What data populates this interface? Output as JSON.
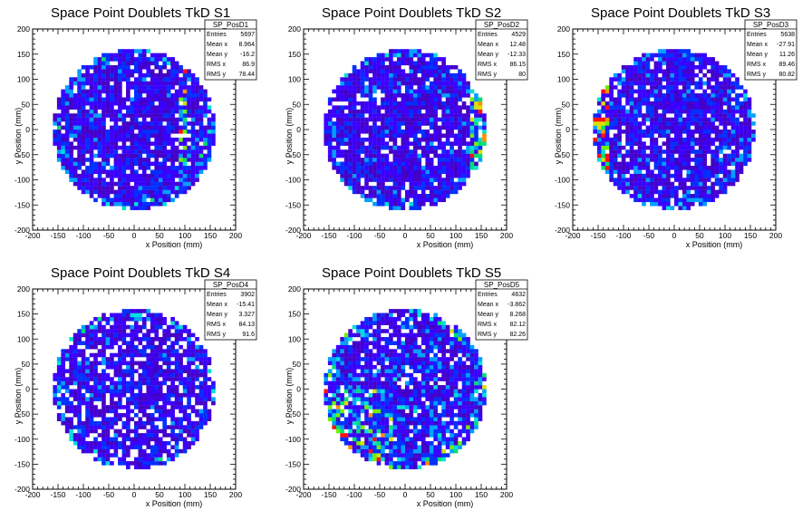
{
  "colors": {
    "background": "#ffffff",
    "frame": "#000000",
    "palette": [
      "#4400c8",
      "#3a00ff",
      "#0030ff",
      "#00a0ff",
      "#00e0d8",
      "#00e070",
      "#70f000",
      "#d8e000",
      "#ff9000",
      "#ff1010"
    ]
  },
  "chart_data": [
    {
      "type": "heatmap",
      "title": "Space Point Doublets TkD S1",
      "xlabel": "x Position (mm)",
      "ylabel": "y Position (mm)",
      "xlim": [
        -200,
        200
      ],
      "ylim": [
        -200,
        200
      ],
      "xticks": [
        "-200",
        "-150",
        "-100",
        "-50",
        "0",
        "50",
        "100",
        "150",
        "200"
      ],
      "yticks": [
        "-200",
        "-150",
        "-100",
        "-50",
        "0",
        "50",
        "100",
        "150",
        "200"
      ],
      "bins": 50,
      "radius_mm": 160,
      "feature": "vertical_band",
      "stats": {
        "name": "SP_PosD1",
        "rows": [
          {
            "label": "Entries",
            "value": "5697"
          },
          {
            "label": "Mean x",
            "value": "8.964"
          },
          {
            "label": "Mean y",
            "value": "-16.2"
          },
          {
            "label": "RMS x",
            "value": "86.9"
          },
          {
            "label": "RMS y",
            "value": "78.44"
          }
        ]
      }
    },
    {
      "type": "heatmap",
      "title": "Space Point Doublets TkD S2",
      "xlabel": "x Position (mm)",
      "ylabel": "y Position (mm)",
      "xlim": [
        -200,
        200
      ],
      "ylim": [
        -200,
        200
      ],
      "xticks": [
        "-200",
        "-150",
        "-100",
        "-50",
        "0",
        "50",
        "100",
        "150",
        "200"
      ],
      "yticks": [
        "-200",
        "-150",
        "-100",
        "-50",
        "0",
        "50",
        "100",
        "150",
        "200"
      ],
      "bins": 50,
      "radius_mm": 160,
      "feature": "right_edge",
      "stats": {
        "name": "SP_PosD2",
        "rows": [
          {
            "label": "Entries",
            "value": "4529"
          },
          {
            "label": "Mean x",
            "value": "12.48"
          },
          {
            "label": "Mean y",
            "value": "-12.33"
          },
          {
            "label": "RMS x",
            "value": "86.15"
          },
          {
            "label": "RMS y",
            "value": "80"
          }
        ]
      }
    },
    {
      "type": "heatmap",
      "title": "Space Point Doublets TkD S3",
      "xlabel": "x Position (mm)",
      "ylabel": "y Position (mm)",
      "xlim": [
        -200,
        200
      ],
      "ylim": [
        -200,
        200
      ],
      "xticks": [
        "-200",
        "-150",
        "-100",
        "-50",
        "0",
        "50",
        "100",
        "150",
        "200"
      ],
      "yticks": [
        "-200",
        "-150",
        "-100",
        "-50",
        "0",
        "50",
        "100",
        "150",
        "200"
      ],
      "bins": 50,
      "radius_mm": 160,
      "feature": "left_edge",
      "stats": {
        "name": "SP_PosD3",
        "rows": [
          {
            "label": "Entries",
            "value": "5638"
          },
          {
            "label": "Mean x",
            "value": "-27.91"
          },
          {
            "label": "Mean y",
            "value": "11.26"
          },
          {
            "label": "RMS x",
            "value": "89.46"
          },
          {
            "label": "RMS y",
            "value": "80.82"
          }
        ]
      }
    },
    {
      "type": "heatmap",
      "title": "Space Point Doublets TkD S4",
      "xlabel": "x Position (mm)",
      "ylabel": "y Position (mm)",
      "xlim": [
        -200,
        200
      ],
      "ylim": [
        -200,
        200
      ],
      "xticks": [
        "-200",
        "-150",
        "-100",
        "-50",
        "0",
        "50",
        "100",
        "150",
        "200"
      ],
      "yticks": [
        "-200",
        "-150",
        "-100",
        "-50",
        "0",
        "50",
        "100",
        "150",
        "200"
      ],
      "bins": 50,
      "radius_mm": 160,
      "feature": "sparse",
      "stats": {
        "name": "SP_PosD4",
        "rows": [
          {
            "label": "Entries",
            "value": "3902"
          },
          {
            "label": "Mean x",
            "value": "-15.41"
          },
          {
            "label": "Mean y",
            "value": "3.327"
          },
          {
            "label": "RMS x",
            "value": "84.13"
          },
          {
            "label": "RMS y",
            "value": "91.6"
          }
        ]
      }
    },
    {
      "type": "heatmap",
      "title": "Space Point Doublets TkD S5",
      "xlabel": "x Position (mm)",
      "ylabel": "y Position (mm)",
      "xlim": [
        -200,
        200
      ],
      "ylim": [
        -200,
        200
      ],
      "xticks": [
        "-200",
        "-150",
        "-100",
        "-50",
        "0",
        "50",
        "100",
        "150",
        "200"
      ],
      "yticks": [
        "-200",
        "-150",
        "-100",
        "-50",
        "0",
        "50",
        "100",
        "150",
        "200"
      ],
      "bins": 50,
      "radius_mm": 160,
      "feature": "hot_lower_left",
      "stats": {
        "name": "SP_PosD5",
        "rows": [
          {
            "label": "Entries",
            "value": "4632"
          },
          {
            "label": "Mean x",
            "value": "-3.862"
          },
          {
            "label": "Mean y",
            "value": "8.268"
          },
          {
            "label": "RMS x",
            "value": "82.12"
          },
          {
            "label": "RMS y",
            "value": "82.26"
          }
        ]
      }
    }
  ]
}
